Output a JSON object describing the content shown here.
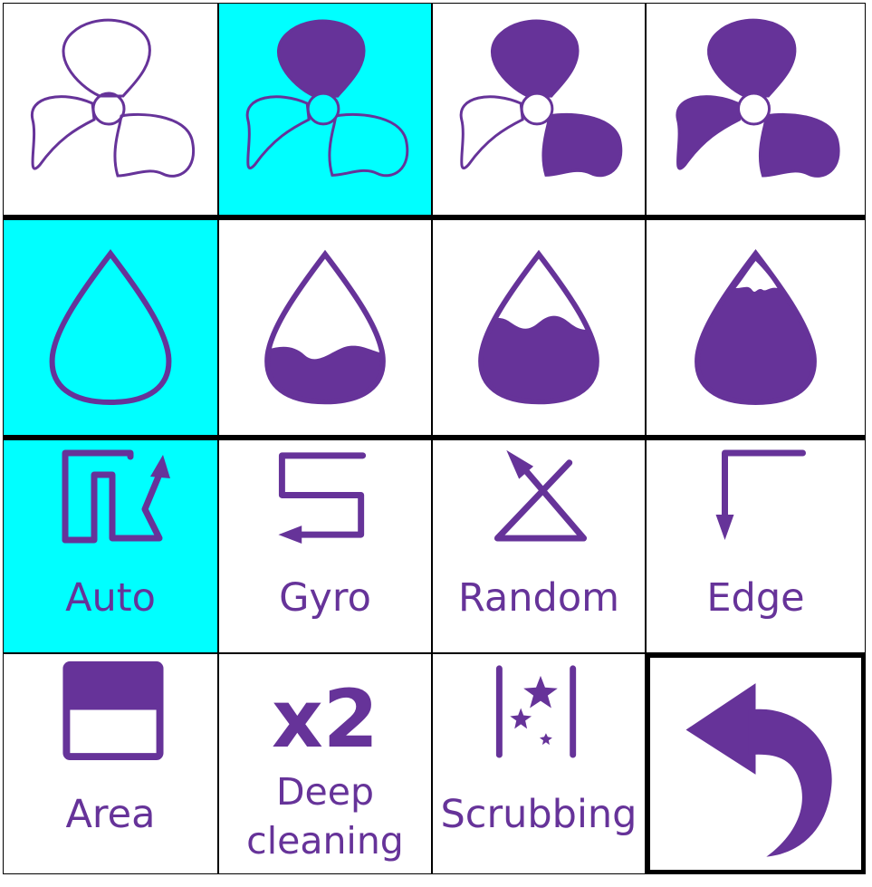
{
  "colors": {
    "accent": "#663399",
    "selected": "#00ffff",
    "border": "#000000"
  },
  "fan_speed": {
    "items": [
      {
        "icon": "fan-off-icon",
        "selected": false
      },
      {
        "icon": "fan-low-icon",
        "selected": true
      },
      {
        "icon": "fan-medium-icon",
        "selected": false
      },
      {
        "icon": "fan-high-icon",
        "selected": false
      }
    ]
  },
  "water_level": {
    "items": [
      {
        "icon": "water-drop-empty-icon",
        "selected": true
      },
      {
        "icon": "water-drop-low-icon",
        "selected": false
      },
      {
        "icon": "water-drop-medium-icon",
        "selected": false
      },
      {
        "icon": "water-drop-high-icon",
        "selected": false
      }
    ]
  },
  "modes": {
    "auto": {
      "label": "Auto",
      "icon": "auto-path-icon",
      "selected": true
    },
    "gyro": {
      "label": "Gyro",
      "icon": "gyro-path-icon",
      "selected": false
    },
    "random": {
      "label": "Random",
      "icon": "random-path-icon",
      "selected": false
    },
    "edge": {
      "label": "Edge",
      "icon": "edge-path-icon",
      "selected": false
    }
  },
  "extras": {
    "area": {
      "label": "Area",
      "icon": "area-icon"
    },
    "deep_cleaning": {
      "badge": "x2",
      "line1": "Deep",
      "line2": "cleaning"
    },
    "scrubbing": {
      "label": "Scrubbing",
      "icon": "scrubbing-icon"
    },
    "back": {
      "icon": "back-arrow-icon"
    }
  }
}
